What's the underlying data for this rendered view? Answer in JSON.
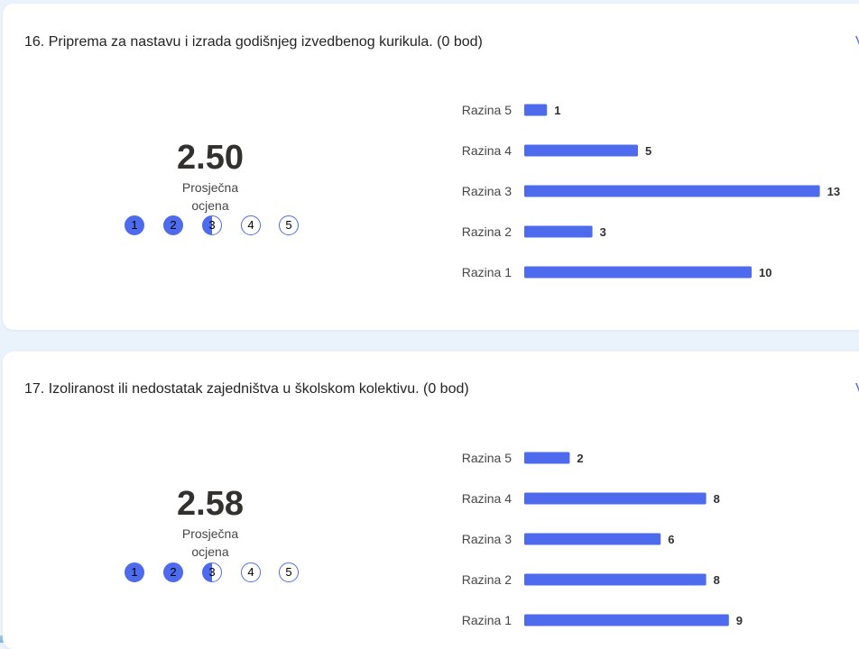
{
  "questions": [
    {
      "title": "16. Priprema za nastavu i izrada godišnjeg izvedbenog kurikula. (0 bod)",
      "average": "2.50",
      "average_label": "Prosječna ocjena",
      "rating_scale": [
        "1",
        "2",
        "3",
        "4",
        "5"
      ],
      "edge_link_text": "V"
    },
    {
      "title": "17.  Izoliranost ili nedostatak zajedništva u školskom kolektivu. (0 bod)",
      "average": "2.58",
      "average_label": "Prosječna ocjena",
      "rating_scale": [
        "1",
        "2",
        "3",
        "4",
        "5"
      ],
      "edge_link_text": "V"
    }
  ],
  "colors": {
    "bar": "#4f6bed",
    "card": "#ffffff",
    "page_background": "#eaf3fb"
  },
  "chart_data": [
    {
      "type": "bar",
      "orientation": "horizontal",
      "categories": [
        "Razina 5",
        "Razina 4",
        "Razina 3",
        "Razina 2",
        "Razina 1"
      ],
      "values": [
        1,
        5,
        13,
        3,
        10
      ]
    },
    {
      "type": "bar",
      "orientation": "horizontal",
      "categories": [
        "Razina 5",
        "Razina 4",
        "Razina 3",
        "Razina 2",
        "Razina 1"
      ],
      "values": [
        2,
        8,
        6,
        8,
        9
      ]
    }
  ]
}
